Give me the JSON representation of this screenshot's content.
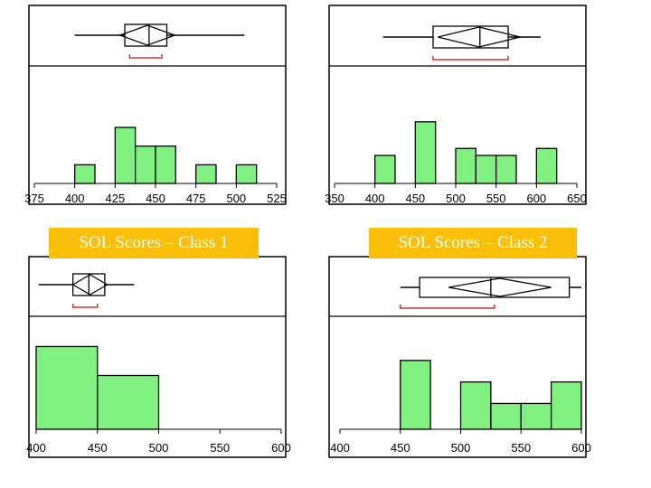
{
  "colors": {
    "bar_fill": "#80f080",
    "bar_stroke": "#000000",
    "bracket": "#d83030",
    "frame": "#000000",
    "banner_bg": "#fbbf0a",
    "banner_text": "#ffffff"
  },
  "banners": [
    "SOL Scores – Class 1",
    "SOL Scores – Class 2"
  ],
  "chart_data": [
    {
      "type": "bar",
      "subtype": "histogram-with-boxplot",
      "xlim": [
        375,
        525
      ],
      "x_ticks": [
        375,
        400,
        425,
        450,
        475,
        500,
        525
      ],
      "ymax": 3,
      "bins": [
        {
          "x0": 400,
          "x1": 412.5,
          "count": 0.5
        },
        {
          "x0": 425,
          "x1": 437.5,
          "count": 1.5
        },
        {
          "x0": 437.5,
          "x1": 450,
          "count": 1
        },
        {
          "x0": 450,
          "x1": 462.5,
          "count": 1
        },
        {
          "x0": 475,
          "x1": 487.5,
          "count": 0.5
        },
        {
          "x0": 500,
          "x1": 512.5,
          "count": 0.5
        }
      ],
      "boxplot": {
        "whisker_low": 400,
        "q1": 431,
        "median": 446,
        "q3": 457,
        "whisker_high": 505,
        "mean_diamond": [
          428,
          462
        ],
        "shortest_half": [
          434,
          454
        ]
      }
    },
    {
      "type": "bar",
      "subtype": "histogram-with-boxplot",
      "xlim": [
        350,
        650
      ],
      "x_ticks": [
        350,
        400,
        450,
        500,
        550,
        600,
        650
      ],
      "ymax": 4,
      "bins": [
        {
          "x0": 400,
          "x1": 425,
          "count": 1
        },
        {
          "x0": 450,
          "x1": 475,
          "count": 2.2
        },
        {
          "x0": 500,
          "x1": 525,
          "count": 1.25
        },
        {
          "x0": 525,
          "x1": 550,
          "count": 1
        },
        {
          "x0": 550,
          "x1": 575,
          "count": 1
        },
        {
          "x0": 600,
          "x1": 625,
          "count": 1.25
        }
      ],
      "boxplot": {
        "whisker_low": 410,
        "q1": 472,
        "median": 530,
        "q3": 565,
        "whisker_high": 605,
        "mean_diamond": [
          478,
          580
        ],
        "shortest_half": [
          472,
          565
        ]
      }
    },
    {
      "type": "bar",
      "subtype": "histogram-with-boxplot",
      "xlim": [
        400,
        600
      ],
      "x_ticks": [
        400,
        450,
        500,
        550,
        600
      ],
      "ymax": 2.6,
      "bins": [
        {
          "x0": 400,
          "x1": 450,
          "count": 2
        },
        {
          "x0": 450,
          "x1": 500,
          "count": 1.3
        }
      ],
      "boxplot": {
        "whisker_low": 402,
        "q1": 430,
        "median": 443,
        "q3": 456,
        "whisker_high": 480,
        "mean_diamond": [
          430,
          458
        ],
        "shortest_half": [
          430,
          450
        ]
      }
    },
    {
      "type": "bar",
      "subtype": "histogram-with-boxplot",
      "xlim": [
        400,
        600
      ],
      "x_ticks": [
        400,
        450,
        500,
        550,
        600
      ],
      "ymax": 2.5,
      "bins": [
        {
          "x0": 450,
          "x1": 475,
          "count": 1.6
        },
        {
          "x0": 500,
          "x1": 525,
          "count": 1.1
        },
        {
          "x0": 525,
          "x1": 550,
          "count": 0.6
        },
        {
          "x0": 550,
          "x1": 575,
          "count": 0.6
        },
        {
          "x0": 575,
          "x1": 600,
          "count": 1.1
        }
      ],
      "boxplot": {
        "whisker_low": 450,
        "q1": 466,
        "median": 525,
        "q3": 590,
        "whisker_high": 600,
        "mean_diamond": [
          490,
          575
        ],
        "shortest_half": [
          450,
          528
        ]
      }
    }
  ]
}
